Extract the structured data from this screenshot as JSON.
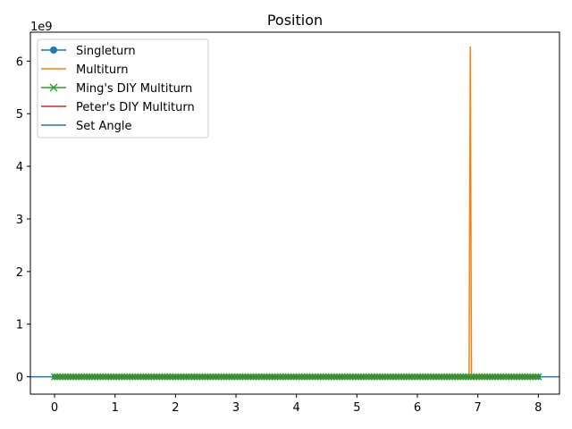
{
  "chart_data": {
    "type": "line",
    "title": "Position",
    "xlabel": "",
    "ylabel": "",
    "y_multiplier_label": "1e9",
    "xlim": [
      -0.4,
      8.35
    ],
    "ylim": [
      -0.33,
      6.55
    ],
    "x_ticks": [
      0,
      1,
      2,
      3,
      4,
      5,
      6,
      7,
      8
    ],
    "y_ticks": [
      0,
      1,
      2,
      3,
      4,
      5,
      6
    ],
    "grid": false,
    "legend_position": "upper-left",
    "series": [
      {
        "name": "Singleturn",
        "color": "#1f77b4",
        "marker": "circle",
        "x_range": [
          0,
          8
        ],
        "value": 0
      },
      {
        "name": "Multiturn",
        "color": "#ff7f0e",
        "marker": "none",
        "x_range": [
          0,
          8
        ],
        "value": 0,
        "spike": {
          "x": [
            6.855,
            6.875,
            6.895
          ],
          "y": [
            0,
            6.28,
            0
          ]
        }
      },
      {
        "name": "Ming's DIY Multiturn",
        "color": "#2ca02c",
        "marker": "x",
        "x_range": [
          0,
          8
        ],
        "value": 0
      },
      {
        "name": "Peter's DIY Multiturn",
        "color": "#d62728",
        "marker": "none",
        "x_range": [
          0,
          8
        ],
        "value": 0
      },
      {
        "name": "Set Angle",
        "color": "#1f77b4",
        "marker": "none",
        "type": "hline",
        "value": 0
      }
    ]
  }
}
